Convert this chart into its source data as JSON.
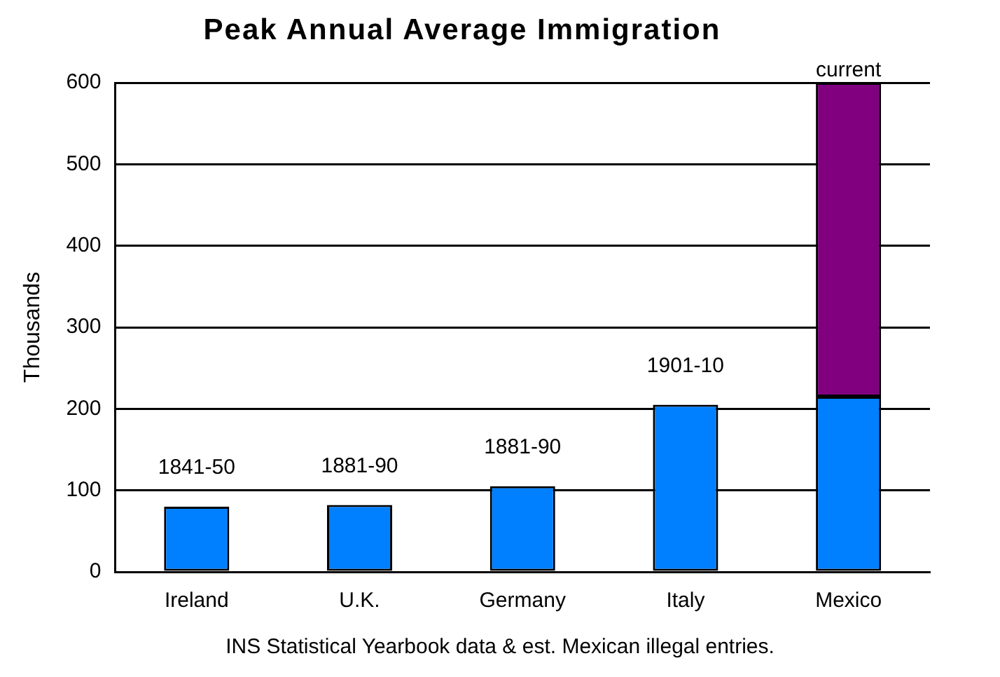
{
  "chart_data": {
    "type": "bar",
    "title": "Peak Annual Average Immigration",
    "ylabel": "Thousands",
    "categories": [
      "Ireland",
      "U.K.",
      "Germany",
      "Italy",
      "Mexico"
    ],
    "stacked": true,
    "series": [
      {
        "color": "#0080ff",
        "values": [
          80,
          82,
          105,
          205,
          215
        ]
      },
      {
        "color": "#800080",
        "values": [
          null,
          null,
          null,
          null,
          385
        ]
      }
    ],
    "ylim": [
      0,
      600
    ],
    "yticks": [
      0,
      100,
      200,
      300,
      400,
      500,
      600
    ],
    "grid": "y",
    "legend": false,
    "annotations": [
      {
        "text": "1841-50",
        "x": "Ireland",
        "y": 80
      },
      {
        "text": "1881-90",
        "x": "U.K.",
        "y": 82
      },
      {
        "text": "1881-90",
        "x": "Germany",
        "y": 105
      },
      {
        "text": "1901-10",
        "x": "Italy",
        "y": 205
      },
      {
        "text": "current",
        "x": "Mexico",
        "y": 600
      },
      "INS Statistical Yearbook data & est. Mexican illegal entries."
    ]
  }
}
